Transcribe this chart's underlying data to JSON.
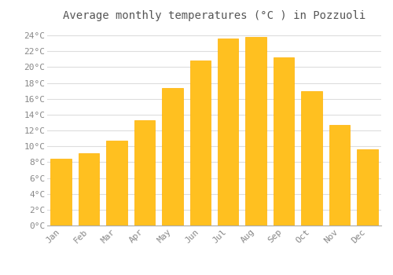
{
  "title": "Average monthly temperatures (°C ) in Pozzuoli",
  "months": [
    "Jan",
    "Feb",
    "Mar",
    "Apr",
    "May",
    "Jun",
    "Jul",
    "Aug",
    "Sep",
    "Oct",
    "Nov",
    "Dec"
  ],
  "values": [
    8.4,
    9.1,
    10.7,
    13.3,
    17.4,
    20.8,
    23.6,
    23.8,
    21.2,
    17.0,
    12.7,
    9.6
  ],
  "bar_color": "#FFC020",
  "bar_edge_color": "#FFB000",
  "background_color": "#FFFFFF",
  "grid_color": "#DDDDDD",
  "text_color": "#888888",
  "title_color": "#555555",
  "ylim": [
    0,
    25
  ],
  "ytick_step": 2,
  "title_fontsize": 10,
  "tick_fontsize": 8,
  "bar_width": 0.75
}
